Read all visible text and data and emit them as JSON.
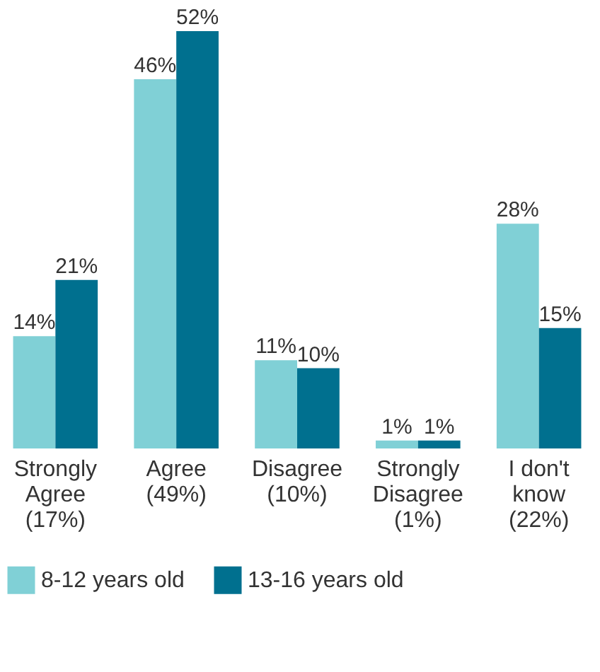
{
  "chart_data": {
    "type": "bar",
    "categories": [
      "Strongly\nAgree\n(17%)",
      "Agree\n(49%)",
      "Disagree\n(10%)",
      "Strongly\nDisagree\n(1%)",
      "I don't\nknow\n(22%)"
    ],
    "series": [
      {
        "name": "8-12 years old",
        "color": "#80d0d6",
        "values": [
          14,
          46,
          11,
          1,
          28
        ],
        "value_labels": [
          "14%",
          "46%",
          "11%",
          "1%",
          "28%"
        ]
      },
      {
        "name": "13-16 years old",
        "color": "#00708f",
        "values": [
          21,
          52,
          10,
          1,
          15
        ],
        "value_labels": [
          "21%",
          "52%",
          "10%",
          "1%",
          "15%"
        ]
      }
    ],
    "legend": "bottom",
    "grid": false
  }
}
